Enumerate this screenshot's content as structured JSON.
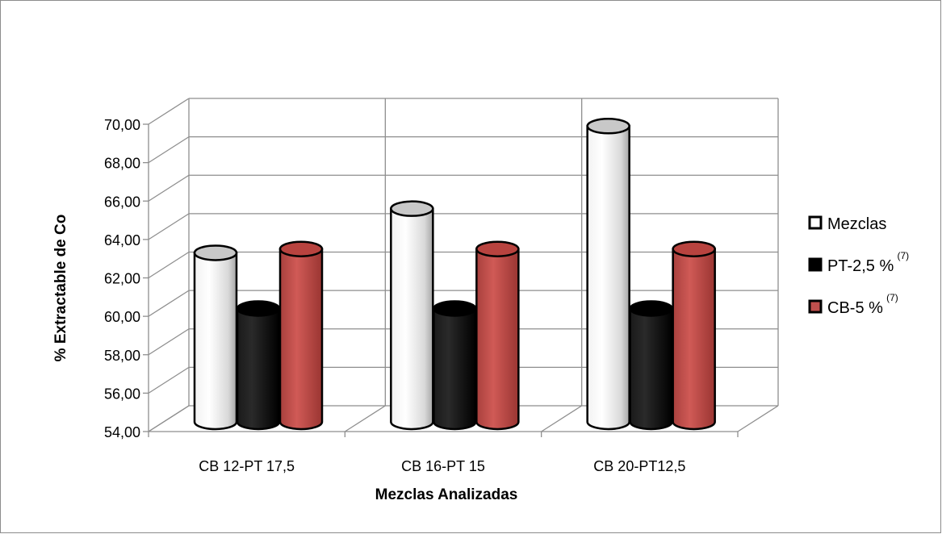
{
  "chart_data": {
    "type": "bar",
    "style": "3d-cylinder",
    "categories": [
      "CB 12-PT 17,5",
      "CB 16-PT 15",
      "CB 20-PT12,5"
    ],
    "series": [
      {
        "name": "Mezclas",
        "name_sup": "",
        "color": "#ffffff",
        "values": [
          62.8,
          65.1,
          69.4
        ]
      },
      {
        "name": "PT-2,5 %",
        "name_sup": "(7)",
        "color": "#000000",
        "values": [
          59.9,
          59.9,
          59.9
        ]
      },
      {
        "name": "CB-5 %",
        "name_sup": "(7)",
        "color": "#c0504d",
        "values": [
          63.0,
          63.0,
          63.0
        ]
      }
    ],
    "xlabel": "Mezclas Analizadas",
    "ylabel": "% Extractable de Co",
    "ylim": [
      54,
      70
    ],
    "yticks": [
      "54,00",
      "56,00",
      "58,00",
      "60,00",
      "62,00",
      "64,00",
      "66,00",
      "68,00",
      "70,00"
    ],
    "ytick_values": [
      54,
      56,
      58,
      60,
      62,
      64,
      66,
      68,
      70
    ],
    "grid": true,
    "legend_position": "right"
  }
}
